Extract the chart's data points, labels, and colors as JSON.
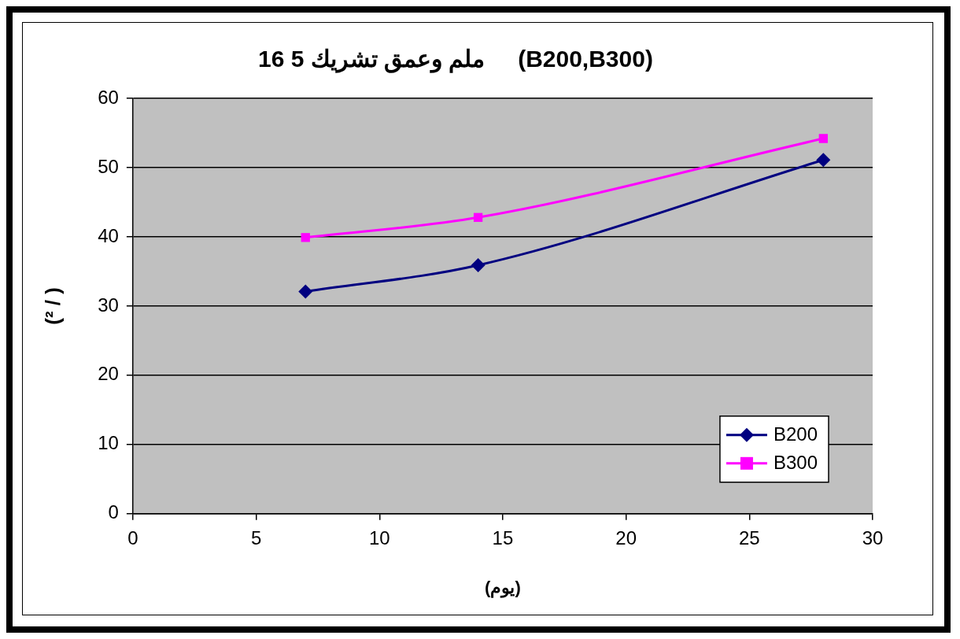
{
  "chart_data": {
    "type": "line",
    "title": "16 ملم وعمق تشريك 5     (B200,B300)",
    "xlabel": "(يوم)",
    "ylabel": "(² / )",
    "x": [
      7,
      14,
      28
    ],
    "series": [
      {
        "name": "B200",
        "color": "#000080",
        "values": [
          32.1,
          35.9,
          51.1
        ],
        "marker": "diamond"
      },
      {
        "name": "B300",
        "color": "#ff00ff",
        "values": [
          39.9,
          42.8,
          54.2
        ],
        "marker": "square"
      }
    ],
    "xlim": [
      0,
      30
    ],
    "xticks": [
      0,
      5,
      10,
      15,
      20,
      25,
      30
    ],
    "ylim": [
      0,
      60
    ],
    "yticks": [
      0,
      10,
      20,
      30,
      40,
      50,
      60
    ],
    "grid": "y",
    "legend": "bottom right",
    "line_style": "solid"
  }
}
